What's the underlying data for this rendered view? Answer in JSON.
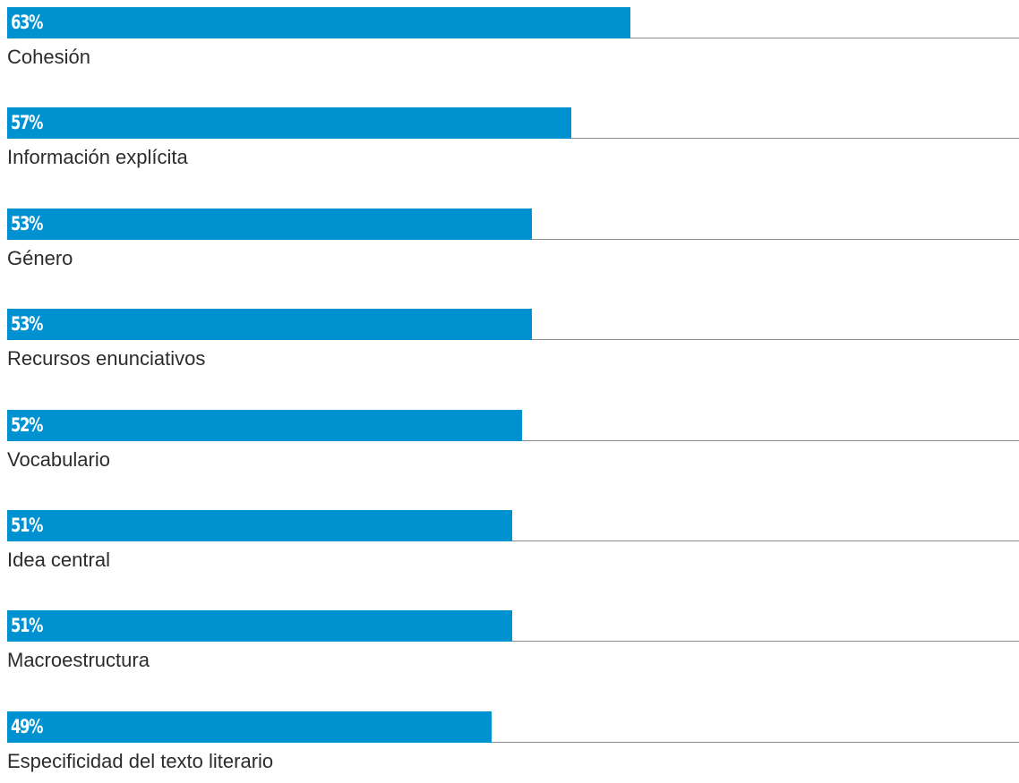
{
  "chart_data": {
    "type": "bar",
    "orientation": "horizontal",
    "categories": [
      "Cohesión",
      "Información explícita",
      "Género",
      "Recursos enunciativos",
      "Vocabulario",
      "Idea central",
      "Macroestructura",
      "Especificidad del texto literario"
    ],
    "values": [
      63,
      57,
      53,
      53,
      52,
      51,
      51,
      49
    ],
    "value_labels": [
      "63%",
      "57%",
      "53%",
      "53%",
      "52%",
      "51%",
      "51%",
      "49%"
    ],
    "xlim": [
      0,
      100
    ],
    "unit": "%",
    "grid": false,
    "legend": "none",
    "bar_color": "#0091d0",
    "value_label_color": "#ffffff",
    "category_label_color": "#2c2c2c",
    "baseline_color": "#8a8a8a"
  }
}
